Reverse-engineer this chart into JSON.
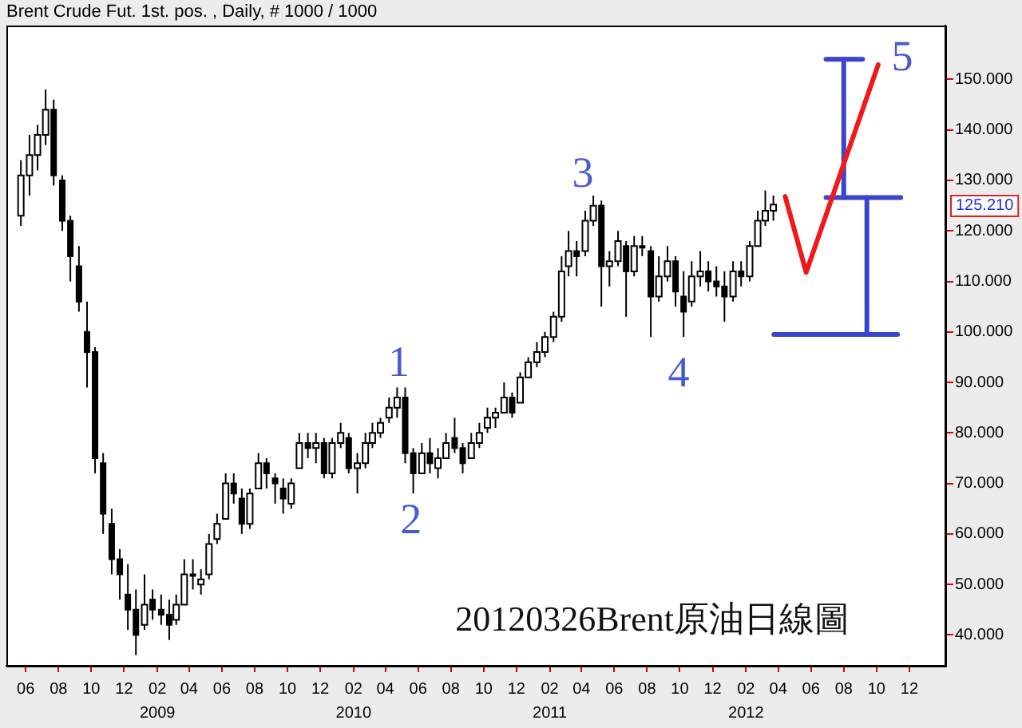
{
  "chart_data": {
    "type": "candlestick",
    "title": "Brent Crude Fut. 1st. pos. , Daily, # 1000 / 1000",
    "color": "#000000",
    "x": [
      "2008-05-23",
      "2008-06-08",
      "2008-06-23",
      "2008-07-08",
      "2008-07-23",
      "2008-08-08",
      "2008-08-23",
      "2008-09-08",
      "2008-09-23",
      "2008-10-08",
      "2008-10-23",
      "2008-11-08",
      "2008-11-23",
      "2008-12-08",
      "2008-12-23",
      "2009-01-08",
      "2009-01-23",
      "2009-02-08",
      "2009-02-23",
      "2009-03-08",
      "2009-03-23",
      "2009-04-08",
      "2009-04-23",
      "2009-05-08",
      "2009-05-23",
      "2009-06-08",
      "2009-06-23",
      "2009-07-08",
      "2009-07-23",
      "2009-08-08",
      "2009-08-23",
      "2009-09-08",
      "2009-09-23",
      "2009-10-08",
      "2009-10-23",
      "2009-11-08",
      "2009-11-23",
      "2009-12-08",
      "2009-12-23",
      "2010-01-08",
      "2010-01-23",
      "2010-02-08",
      "2010-02-23",
      "2010-03-08",
      "2010-03-23",
      "2010-04-08",
      "2010-04-23",
      "2010-05-08",
      "2010-05-23",
      "2010-06-08",
      "2010-06-23",
      "2010-07-08",
      "2010-07-23",
      "2010-08-08",
      "2010-08-23",
      "2010-09-08",
      "2010-09-23",
      "2010-10-08",
      "2010-10-23",
      "2010-11-08",
      "2010-11-23",
      "2010-12-08",
      "2010-12-23",
      "2011-01-08",
      "2011-01-23",
      "2011-02-08",
      "2011-02-23",
      "2011-03-08",
      "2011-03-23",
      "2011-04-08",
      "2011-04-23",
      "2011-05-08",
      "2011-05-23",
      "2011-06-08",
      "2011-06-23",
      "2011-07-08",
      "2011-07-23",
      "2011-08-08",
      "2011-08-23",
      "2011-09-08",
      "2011-09-23",
      "2011-10-08",
      "2011-10-23",
      "2011-11-08",
      "2011-11-23",
      "2011-12-08",
      "2011-12-23",
      "2012-01-08",
      "2012-01-23",
      "2012-02-08",
      "2012-02-23",
      "2012-03-08",
      "2012-03-23"
    ],
    "ohlc": [
      [
        123,
        134,
        121,
        131
      ],
      [
        131,
        139,
        127,
        135
      ],
      [
        135,
        141,
        132,
        139
      ],
      [
        139,
        148,
        137,
        144
      ],
      [
        144,
        146,
        129,
        131
      ],
      [
        130,
        131,
        120,
        122
      ],
      [
        122,
        123,
        110,
        115
      ],
      [
        113,
        117,
        104,
        106
      ],
      [
        100,
        106,
        89,
        96
      ],
      [
        96,
        97,
        72,
        75
      ],
      [
        74,
        76,
        60,
        64
      ],
      [
        62,
        65,
        52,
        55
      ],
      [
        55,
        57,
        47,
        52
      ],
      [
        48,
        54,
        41,
        45
      ],
      [
        45,
        49,
        36,
        40
      ],
      [
        42,
        52,
        41,
        46
      ],
      [
        47,
        49,
        43,
        45
      ],
      [
        45,
        48,
        42,
        44
      ],
      [
        44,
        47,
        39,
        42
      ],
      [
        43,
        48,
        42,
        46
      ],
      [
        46,
        55,
        46,
        52
      ],
      [
        52,
        55,
        49,
        52
      ],
      [
        50,
        53,
        48,
        51
      ],
      [
        52,
        60,
        51,
        58
      ],
      [
        59,
        64,
        58,
        62
      ],
      [
        63,
        72,
        63,
        70
      ],
      [
        70,
        72,
        66,
        68
      ],
      [
        67,
        69,
        60,
        62
      ],
      [
        62,
        69,
        61,
        68
      ],
      [
        69,
        76,
        69,
        74
      ],
      [
        74,
        75,
        69,
        72
      ],
      [
        71,
        72,
        66,
        70
      ],
      [
        69,
        71,
        64,
        67
      ],
      [
        66,
        71,
        65,
        70
      ],
      [
        73,
        80,
        73,
        78
      ],
      [
        78,
        80,
        75,
        77
      ],
      [
        77,
        80,
        74,
        78
      ],
      [
        78,
        79,
        71,
        72
      ],
      [
        72,
        79,
        71,
        78
      ],
      [
        78,
        82,
        77,
        80
      ],
      [
        79,
        80,
        72,
        73
      ],
      [
        73,
        76,
        68,
        74
      ],
      [
        74,
        80,
        73,
        78
      ],
      [
        78,
        82,
        77,
        80
      ],
      [
        80,
        83,
        79,
        82
      ],
      [
        83,
        87,
        82,
        85
      ],
      [
        85,
        89,
        83,
        87
      ],
      [
        87,
        89,
        74,
        76
      ],
      [
        76,
        77,
        68,
        72
      ],
      [
        72,
        78,
        72,
        76
      ],
      [
        76,
        79,
        72,
        74
      ],
      [
        73,
        77,
        71,
        75
      ],
      [
        75,
        80,
        75,
        78
      ],
      [
        79,
        83,
        76,
        77
      ],
      [
        77,
        78,
        72,
        74
      ],
      [
        75,
        80,
        75,
        78
      ],
      [
        78,
        82,
        77,
        80
      ],
      [
        81,
        85,
        80,
        83
      ],
      [
        83,
        85,
        81,
        84
      ],
      [
        84,
        90,
        84,
        87
      ],
      [
        87,
        88,
        83,
        84
      ],
      [
        86,
        92,
        86,
        91
      ],
      [
        91,
        95,
        91,
        94
      ],
      [
        94,
        98,
        93,
        96
      ],
      [
        96,
        100,
        95,
        99
      ],
      [
        99,
        104,
        98,
        103
      ],
      [
        103,
        115,
        102,
        112
      ],
      [
        113,
        120,
        111,
        116
      ],
      [
        116,
        118,
        111,
        115
      ],
      [
        116,
        124,
        115,
        122
      ],
      [
        122,
        127,
        121,
        125
      ],
      [
        125,
        126,
        105,
        113
      ],
      [
        113,
        116,
        109,
        114
      ],
      [
        114,
        120,
        113,
        118
      ],
      [
        117,
        118,
        103,
        112
      ],
      [
        112,
        119,
        111,
        117
      ],
      [
        117,
        119,
        115,
        117
      ],
      [
        116,
        117,
        99,
        107
      ],
      [
        107,
        115,
        106,
        111
      ],
      [
        111,
        117,
        110,
        114
      ],
      [
        114,
        115,
        105,
        108
      ],
      [
        107,
        112,
        99,
        104
      ],
      [
        106,
        114,
        105,
        111
      ],
      [
        111,
        116,
        109,
        112
      ],
      [
        112,
        114,
        108,
        110
      ],
      [
        110,
        113,
        107,
        109
      ],
      [
        109,
        112,
        102,
        107
      ],
      [
        107,
        114,
        106,
        112
      ],
      [
        112,
        114,
        109,
        111
      ],
      [
        111,
        118,
        110,
        117
      ],
      [
        117,
        124,
        117,
        122
      ],
      [
        122,
        128,
        121,
        124
      ],
      [
        124,
        127,
        122,
        125.21
      ]
    ],
    "series": [
      {
        "type": "line",
        "color": "#f01818",
        "x": [
          "2012-04-14",
          "2012-05-23",
          "2012-10-04"
        ],
        "values": [
          126.8,
          111.8,
          152.9
        ]
      },
      {
        "type": "line",
        "color": "#3b44cc",
        "x": [
          "2012-06-29",
          "2012-09-05"
        ],
        "values": [
          154.0,
          154.0
        ]
      },
      {
        "type": "line",
        "color": "#3b44cc",
        "x": [
          "2012-08-01",
          "2012-08-01"
        ],
        "values": [
          154.0,
          126.6
        ]
      },
      {
        "type": "line",
        "color": "#3b44cc",
        "x": [
          "2012-06-29",
          "2012-11-15"
        ],
        "values": [
          126.6,
          126.6
        ]
      },
      {
        "type": "line",
        "color": "#3b44cc",
        "x": [
          "2012-09-13",
          "2012-09-13"
        ],
        "values": [
          126.6,
          99.5
        ]
      },
      {
        "type": "line",
        "color": "#3b44cc",
        "x": [
          "2012-03-24",
          "2012-11-09"
        ],
        "values": [
          99.5,
          99.5
        ]
      }
    ],
    "xlim": [
      "2008-04-26",
      "2013-02-06"
    ],
    "xticks": [
      {
        "value": "2008-06",
        "label": "06"
      },
      {
        "value": "2008-08",
        "label": "08"
      },
      {
        "value": "2008-10",
        "label": "10"
      },
      {
        "value": "2008-12",
        "label": "12"
      },
      {
        "value": "2009-02",
        "label": "02\n2009"
      },
      {
        "value": "2009-04",
        "label": "04"
      },
      {
        "value": "2009-06",
        "label": "06"
      },
      {
        "value": "2009-08",
        "label": "08"
      },
      {
        "value": "2009-10",
        "label": "10"
      },
      {
        "value": "2009-12",
        "label": "12"
      },
      {
        "value": "2010-02",
        "label": "02\n2010"
      },
      {
        "value": "2010-04",
        "label": "04"
      },
      {
        "value": "2010-06",
        "label": "06"
      },
      {
        "value": "2010-08",
        "label": "08"
      },
      {
        "value": "2010-10",
        "label": "10"
      },
      {
        "value": "2010-12",
        "label": "12"
      },
      {
        "value": "2011-02",
        "label": "02\n2011"
      },
      {
        "value": "2011-04",
        "label": "04"
      },
      {
        "value": "2011-06",
        "label": "06"
      },
      {
        "value": "2011-08",
        "label": "08"
      },
      {
        "value": "2011-10",
        "label": "10"
      },
      {
        "value": "2011-12",
        "label": "12"
      },
      {
        "value": "2012-02",
        "label": "02\n2012"
      },
      {
        "value": "2012-04",
        "label": "04"
      },
      {
        "value": "2012-06",
        "label": "06"
      },
      {
        "value": "2012-08",
        "label": "08"
      },
      {
        "value": "2012-10",
        "label": "10"
      },
      {
        "value": "2012-12",
        "label": "12"
      }
    ],
    "ylim": [
      33.9,
      160.6
    ],
    "yticks": [
      {
        "value": 40,
        "label": "40.000"
      },
      {
        "value": 50,
        "label": "50.000"
      },
      {
        "value": 60,
        "label": "60.000"
      },
      {
        "value": 70,
        "label": "70.000"
      },
      {
        "value": 80,
        "label": "80.000"
      },
      {
        "value": 90,
        "label": "90.000"
      },
      {
        "value": 100,
        "label": "100.000"
      },
      {
        "value": 110,
        "label": "110.000"
      },
      {
        "value": 120,
        "label": "120.000"
      },
      {
        "value": 130,
        "label": "130.000"
      },
      {
        "value": 140,
        "label": "140.000"
      },
      {
        "value": 150,
        "label": "150.000"
      }
    ],
    "annotations": [
      "1",
      "2",
      "3",
      "4",
      "5",
      "125.210",
      "20120326Brent原油日線圖"
    ]
  }
}
